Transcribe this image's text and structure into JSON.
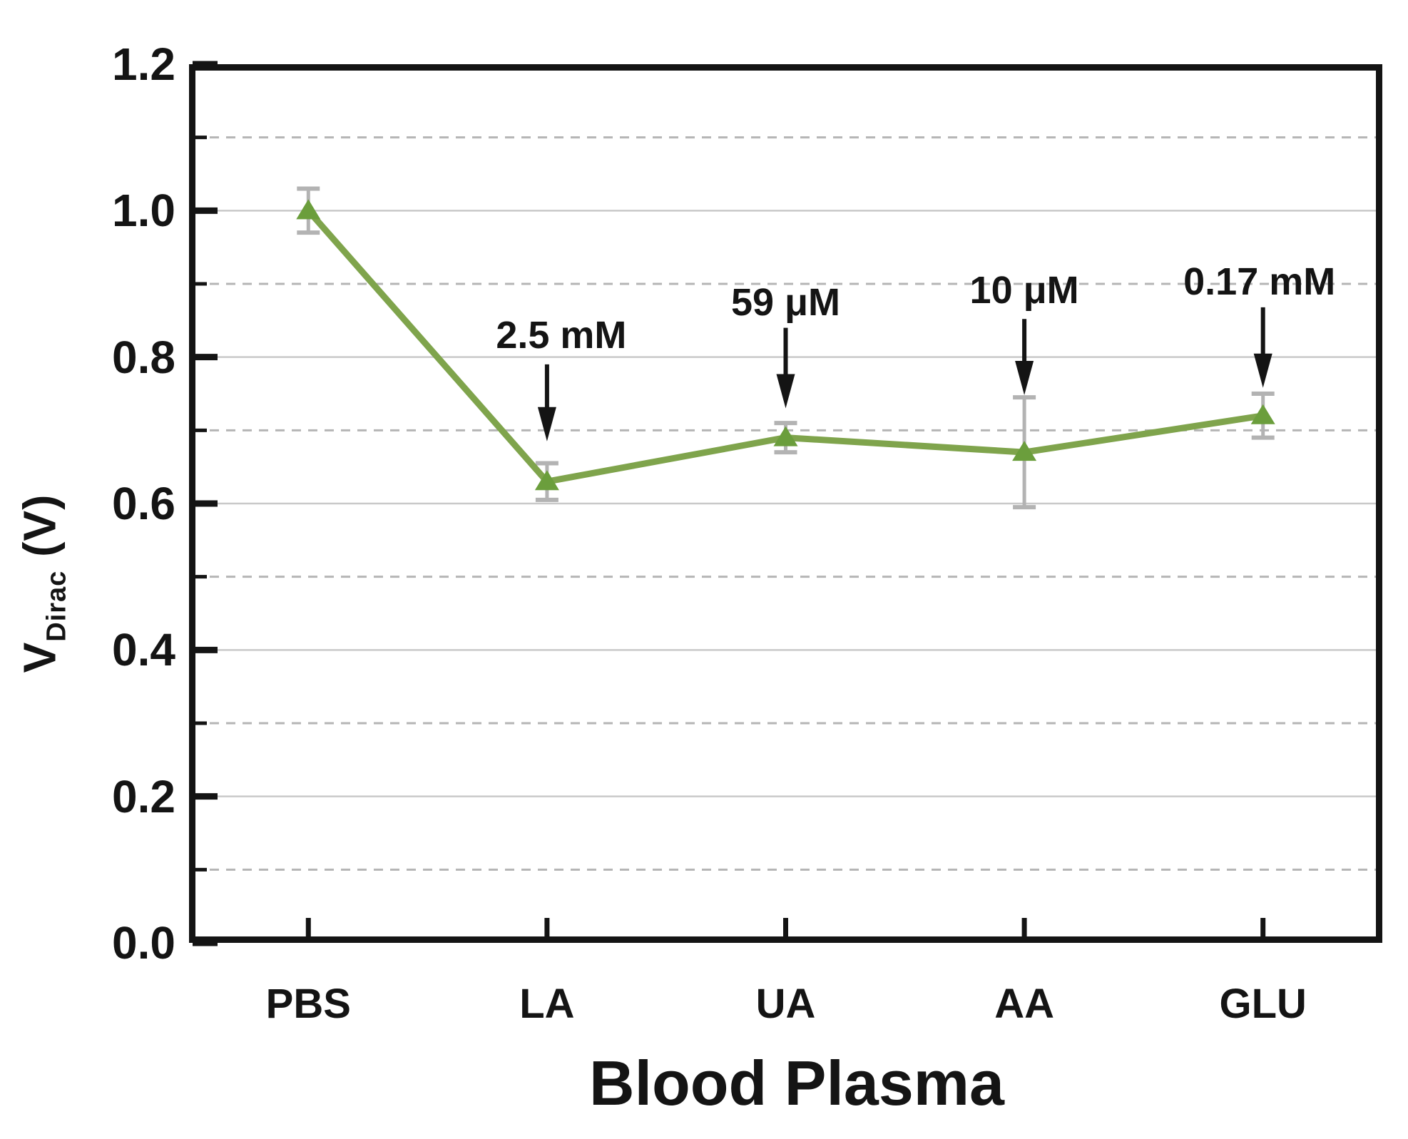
{
  "figure": {
    "background": "#ffffff"
  },
  "chart_data": {
    "type": "line",
    "title": "",
    "xlabel": "Blood Plasma",
    "ylabel": {
      "base": "V",
      "sub": "Dirac",
      "rest": " (V)"
    },
    "categories": [
      "PBS",
      "LA",
      "UA",
      "AA",
      "GLU"
    ],
    "series": [
      {
        "name": "V_Dirac",
        "marker": "triangle-up",
        "values": [
          1.0,
          0.63,
          0.69,
          0.67,
          0.72
        ],
        "errors": [
          0.03,
          0.025,
          0.02,
          0.075,
          0.03
        ]
      }
    ],
    "ylim": [
      0,
      1.2
    ],
    "ytick_values": [
      0,
      0.2,
      0.4,
      0.6,
      0.8,
      1.0,
      1.2
    ],
    "ytick_labels": [
      "0.0",
      "0.2",
      "0.4",
      "0.6",
      "0.8",
      "1.0",
      "1.2"
    ],
    "yminor_values": [
      0.1,
      0.3,
      0.5,
      0.7,
      0.9,
      1.1
    ],
    "grid": {
      "solid_values": [
        0.2,
        0.4,
        0.6,
        0.8,
        1.0
      ],
      "dashed_values": [
        0.1,
        0.3,
        0.5,
        0.7,
        0.9,
        1.1
      ]
    },
    "legend": "none",
    "annotations": [
      {
        "label": "2.5 mM",
        "category": "LA",
        "category_index": 1,
        "text_value": 0.83,
        "text_dx": 20,
        "arrow_from_value": 0.79,
        "arrow_tip_value": 0.685
      },
      {
        "label": "59 μM",
        "category": "UA",
        "category_index": 2,
        "text_value": 0.875,
        "text_dx": 0,
        "arrow_from_value": 0.84,
        "arrow_tip_value": 0.73
      },
      {
        "label": "10 μM",
        "category": "AA",
        "category_index": 3,
        "text_value": 0.891,
        "text_dx": 0,
        "arrow_from_value": 0.852,
        "arrow_tip_value": 0.748
      },
      {
        "label": "0.17 mM",
        "category": "GLU",
        "category_index": 4,
        "text_value": 0.903,
        "text_dx": -5,
        "arrow_from_value": 0.868,
        "arrow_tip_value": 0.758
      }
    ],
    "colors": {
      "line": "#7fa44c",
      "marker": "#6b9e3c",
      "error_bar": "#b3b3b3",
      "grid_solid": "#c9c9c9",
      "grid_dashed": "#b5b5b5",
      "axis_frame": "#141414",
      "text": "#141414",
      "arrow": "#141414"
    }
  }
}
